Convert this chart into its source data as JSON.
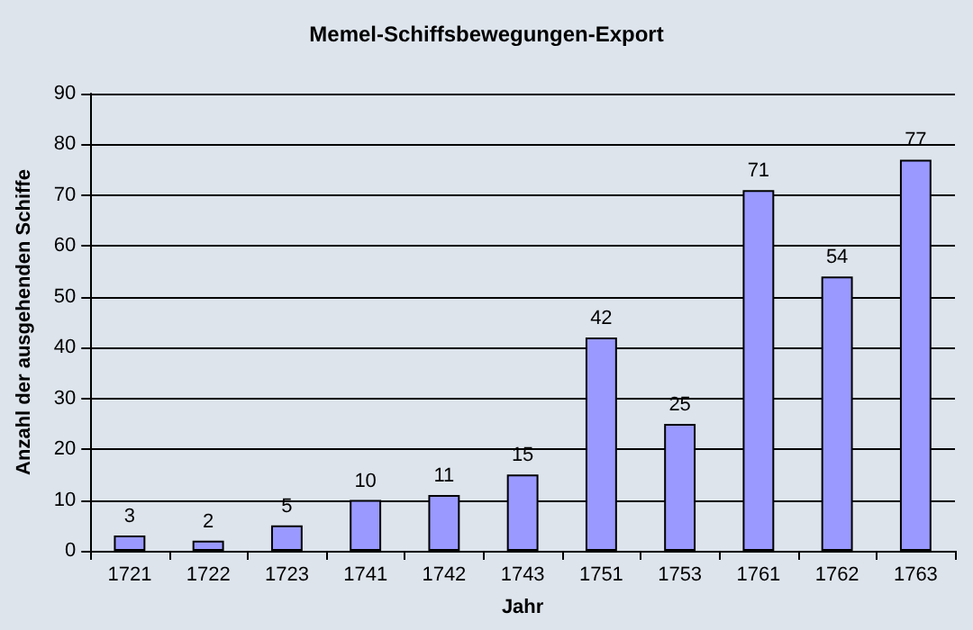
{
  "chart_data": {
    "type": "bar",
    "title": "Memel-Schiffsbewegungen-Export",
    "xlabel": "Jahr",
    "ylabel": "Anzahl der ausgehenden Schiffe",
    "categories": [
      "1721",
      "1722",
      "1723",
      "1741",
      "1742",
      "1743",
      "1751",
      "1753",
      "1761",
      "1762",
      "1763"
    ],
    "values": [
      3,
      2,
      5,
      10,
      11,
      15,
      42,
      25,
      71,
      54,
      77
    ],
    "color": "#9999ff",
    "ylim": [
      0,
      90
    ],
    "yticks": [
      0,
      10,
      20,
      30,
      40,
      50,
      60,
      70,
      80,
      90
    ],
    "grid": "y",
    "data_labels": true
  }
}
